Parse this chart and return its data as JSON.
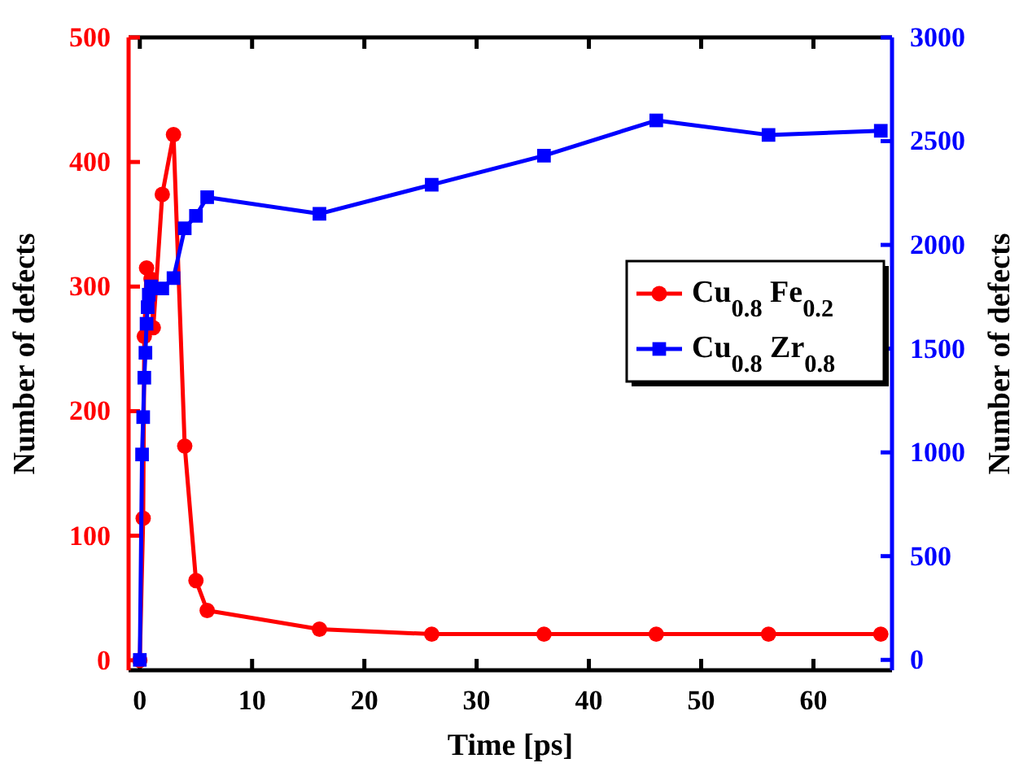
{
  "chart_data": {
    "type": "line",
    "xlabel": "Time [ps]",
    "ylabel": "Number of defects",
    "y2label": "Number of defects",
    "xlim": [
      -1,
      67
    ],
    "xticks": [
      0,
      10,
      20,
      30,
      40,
      50,
      60
    ],
    "ylim": [
      -8,
      500
    ],
    "yticks": [
      0,
      100,
      200,
      300,
      400,
      500
    ],
    "y2lim": [
      -50,
      3000
    ],
    "y2ticks": [
      0,
      500,
      1000,
      1500,
      2000,
      2500,
      3000
    ],
    "legend": "right",
    "grid": false,
    "line_style": "solid",
    "series": [
      {
        "name": "Cu$_{0.8}$ Fe$_{0.2}$",
        "color": "#ff0000",
        "marker": "circle",
        "x": [
          0,
          0.3,
          0.4,
          0.6,
          1,
          1.2,
          2,
          3,
          4,
          5,
          6,
          16,
          26,
          36,
          46,
          56,
          66
        ],
        "values": [
          0,
          114,
          260,
          315,
          306,
          267,
          374,
          422,
          172,
          64,
          40,
          25,
          21,
          21,
          21,
          21,
          21
        ]
      },
      {
        "name": "Cu$_{0.8}$ Zr$_{0.8}$",
        "color": "#0000ff",
        "marker": "square",
        "axis": "y2",
        "x": [
          0,
          0.2,
          0.3,
          0.4,
          0.5,
          0.6,
          0.7,
          0.8,
          1,
          2,
          3,
          4,
          5,
          6,
          16,
          26,
          36,
          46,
          56,
          66
        ],
        "values": [
          0,
          990,
          1170,
          1360,
          1480,
          1620,
          1700,
          1760,
          1800,
          1790,
          1840,
          2080,
          2140,
          2230,
          2150,
          2290,
          2430,
          2600,
          2530,
          2550
        ]
      }
    ]
  }
}
